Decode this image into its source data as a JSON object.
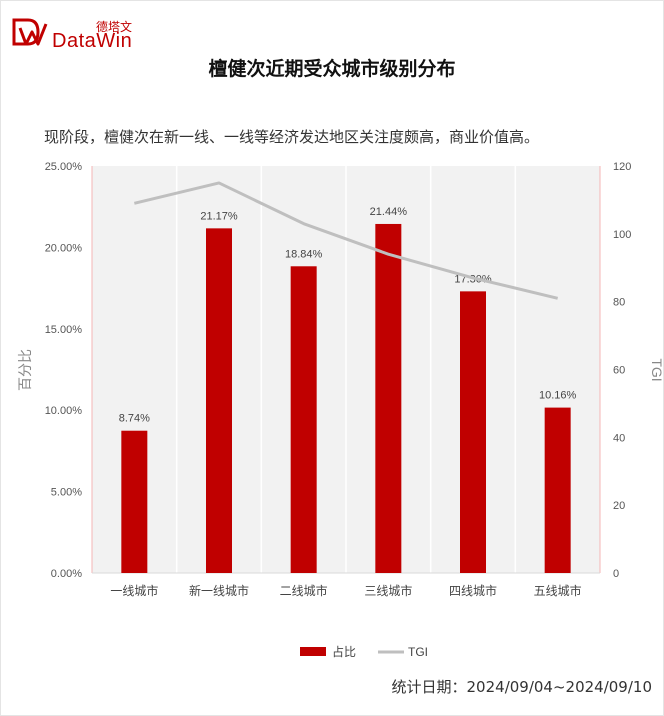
{
  "brand": {
    "name_cn": "德塔文",
    "name_en": "DataWin"
  },
  "title": "檀健次近期受众城市级别分布",
  "subtitle": "现阶段，檀健次在新一线、一线等经济发达地区关注度颇高，商业价值高。",
  "footer": "统计日期：2024/09/04~2024/09/10",
  "colors": {
    "bar": "#c00000",
    "line": "#bfbfbf",
    "plot_bg": "#f2f2f2",
    "brand": "#c00000"
  },
  "chart_data": {
    "type": "bar",
    "categories": [
      "一线城市",
      "新一线城市",
      "二线城市",
      "三线城市",
      "四线城市",
      "五线城市"
    ],
    "series": [
      {
        "name": "占比",
        "type": "bar",
        "axis": "left",
        "values": [
          8.74,
          21.17,
          18.84,
          21.44,
          17.3,
          10.16
        ],
        "labels": [
          "8.74%",
          "21.17%",
          "18.84%",
          "21.44%",
          "17.30%",
          "10.16%"
        ]
      },
      {
        "name": "TGI",
        "type": "line",
        "axis": "right",
        "values": [
          109,
          115,
          103,
          94,
          87,
          81
        ]
      }
    ],
    "ylabel": "百分比",
    "y2label": "TGI",
    "ylim": [
      0,
      25
    ],
    "y2lim": [
      0,
      120
    ],
    "yticks": [
      "0.00%",
      "5.00%",
      "10.00%",
      "15.00%",
      "20.00%",
      "25.00%"
    ],
    "y2ticks": [
      "0",
      "20",
      "40",
      "60",
      "80",
      "100",
      "120"
    ],
    "legend": "bottom-center",
    "grid": false
  }
}
